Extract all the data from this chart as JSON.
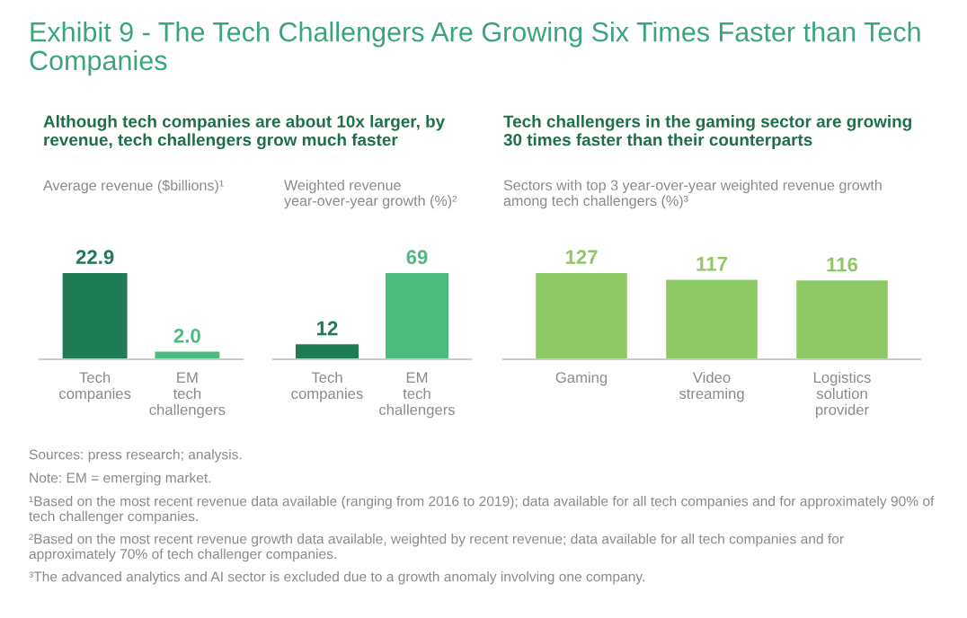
{
  "chart_data": [
    {
      "type": "other",
      "title": "Exhibit 9 - The Tech Challengers Are Growing Six Times Faster than Tech Companies",
      "annotations": [
        "Sources: press research; analysis.",
        "Note: EM = emerging market.",
        "¹Based on the most recent revenue data available (ranging from 2016 to 2019); data available for all tech companies and for approximately 90% of tech challenger companies.",
        "²Based on the most recent revenue growth data available, weighted by recent revenue; data available for all tech companies and for approximately 70% of tech challenger companies.",
        "³The advanced analytics and AI sector is excluded due to a growth anomaly involving one company."
      ]
    },
    {
      "type": "bar",
      "subtitle": "Although tech companies are about 10x larger, by revenue, tech challengers grow much faster",
      "ylabel": "Average revenue ($billions)¹",
      "categories": [
        "Tech companies",
        "EM tech challengers"
      ],
      "values": [
        22.9,
        2.0
      ],
      "value_labels": [
        "22.9",
        "2.0"
      ],
      "colors": [
        "#1f7a56",
        "#4dbb80"
      ]
    },
    {
      "type": "bar",
      "ylabel": "Weighted revenue year-over-year growth (%)²",
      "categories": [
        "Tech companies",
        "EM tech challengers"
      ],
      "values": [
        12,
        69
      ],
      "colors": [
        "#1f7a56",
        "#4dbb80"
      ],
      "data_labels": true
    },
    {
      "type": "bar",
      "subtitle": "Tech challengers in the gaming sector are growing 30 times faster than their counterparts",
      "ylabel": "Sectors with top 3 year-over-year weighted revenue growth among tech challengers (%)³",
      "categories": [
        "Gaming",
        "Video streaming",
        "Logistics solution provider"
      ],
      "values": [
        127,
        117,
        116
      ],
      "colors": [
        "#8cc864",
        "#8cc864",
        "#8cc864"
      ],
      "data_labels": true
    }
  ]
}
